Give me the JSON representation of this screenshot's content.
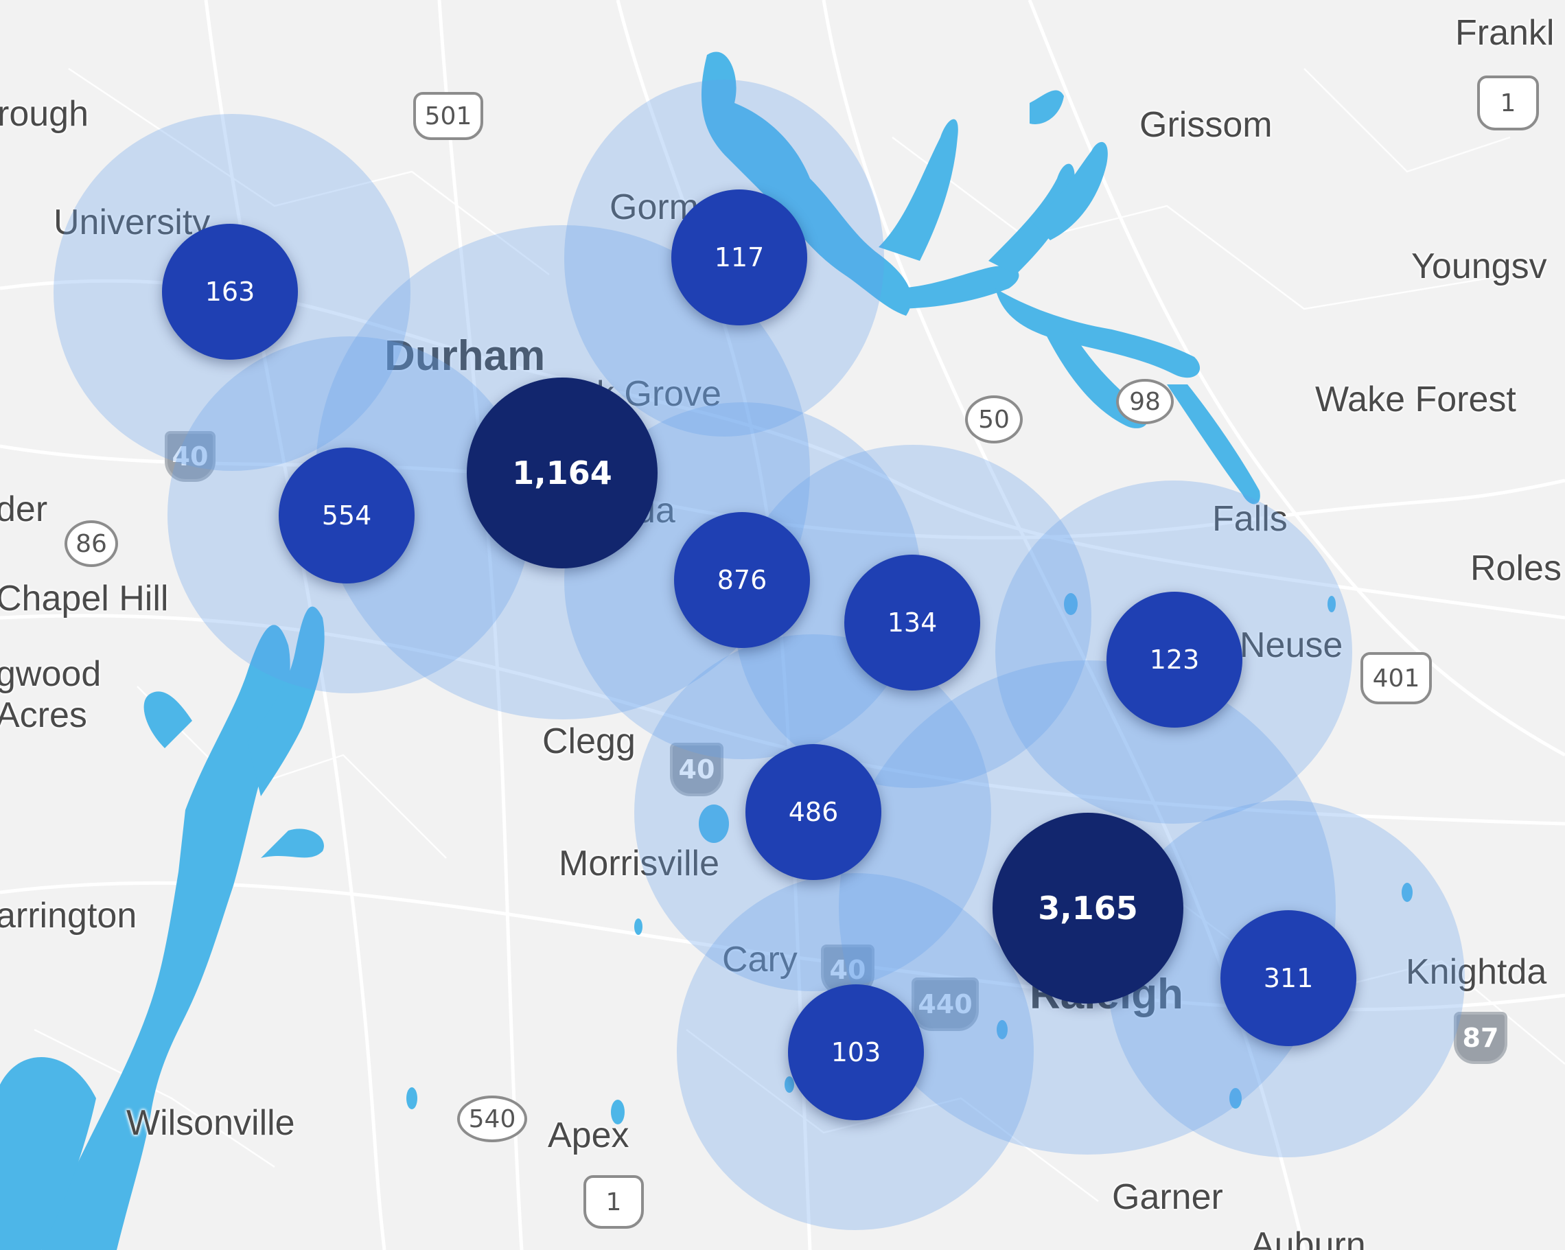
{
  "places": [
    {
      "name": "rough"
    },
    {
      "name": "University"
    },
    {
      "name": "Durham"
    },
    {
      "name": "Gorm"
    },
    {
      "name": "ak Grove"
    },
    {
      "name": "Grissom"
    },
    {
      "name": "Frankl"
    },
    {
      "name": "Youngsv"
    },
    {
      "name": "Wake Forest"
    },
    {
      "name": "der"
    },
    {
      "name": "Chapel Hill"
    },
    {
      "name": "gwood"
    },
    {
      "name": "Acres"
    },
    {
      "name": "sda"
    },
    {
      "name": "Falls"
    },
    {
      "name": "Roles"
    },
    {
      "name": "Neuse"
    },
    {
      "name": "Clegg"
    },
    {
      "name": "Morrisville"
    },
    {
      "name": "arrington"
    },
    {
      "name": "Cary"
    },
    {
      "name": "Raleigh"
    },
    {
      "name": "Knightda"
    },
    {
      "name": "Wilsonville"
    },
    {
      "name": "Apex"
    },
    {
      "name": "Garner"
    },
    {
      "name": "Auburn"
    }
  ],
  "shields": [
    {
      "label": "501",
      "type": "us"
    },
    {
      "label": "1",
      "type": "us"
    },
    {
      "label": "40",
      "type": "interstate"
    },
    {
      "label": "86",
      "type": "state"
    },
    {
      "label": "50",
      "type": "state"
    },
    {
      "label": "98",
      "type": "state"
    },
    {
      "label": "401",
      "type": "us"
    },
    {
      "label": "40",
      "type": "interstate"
    },
    {
      "label": "40",
      "type": "interstate"
    },
    {
      "label": "440",
      "type": "interstate"
    },
    {
      "label": "87",
      "type": "interstate"
    },
    {
      "label": "540",
      "type": "state"
    },
    {
      "label": "1",
      "type": "us"
    }
  ],
  "clusters": [
    {
      "count": "163",
      "size": "small"
    },
    {
      "count": "117",
      "size": "small"
    },
    {
      "count": "554",
      "size": "small"
    },
    {
      "count": "1,164",
      "size": "large"
    },
    {
      "count": "876",
      "size": "small"
    },
    {
      "count": "134",
      "size": "small"
    },
    {
      "count": "123",
      "size": "small"
    },
    {
      "count": "486",
      "size": "small"
    },
    {
      "count": "3,165",
      "size": "large"
    },
    {
      "count": "311",
      "size": "small"
    },
    {
      "count": "103",
      "size": "small"
    }
  ],
  "colors": {
    "land": "#f2f2f2",
    "road": "#ffffff",
    "water": "#4db6e8",
    "halo": "#64a0eb",
    "cluster_small": "#1f40b3",
    "cluster_large": "#12266e"
  }
}
